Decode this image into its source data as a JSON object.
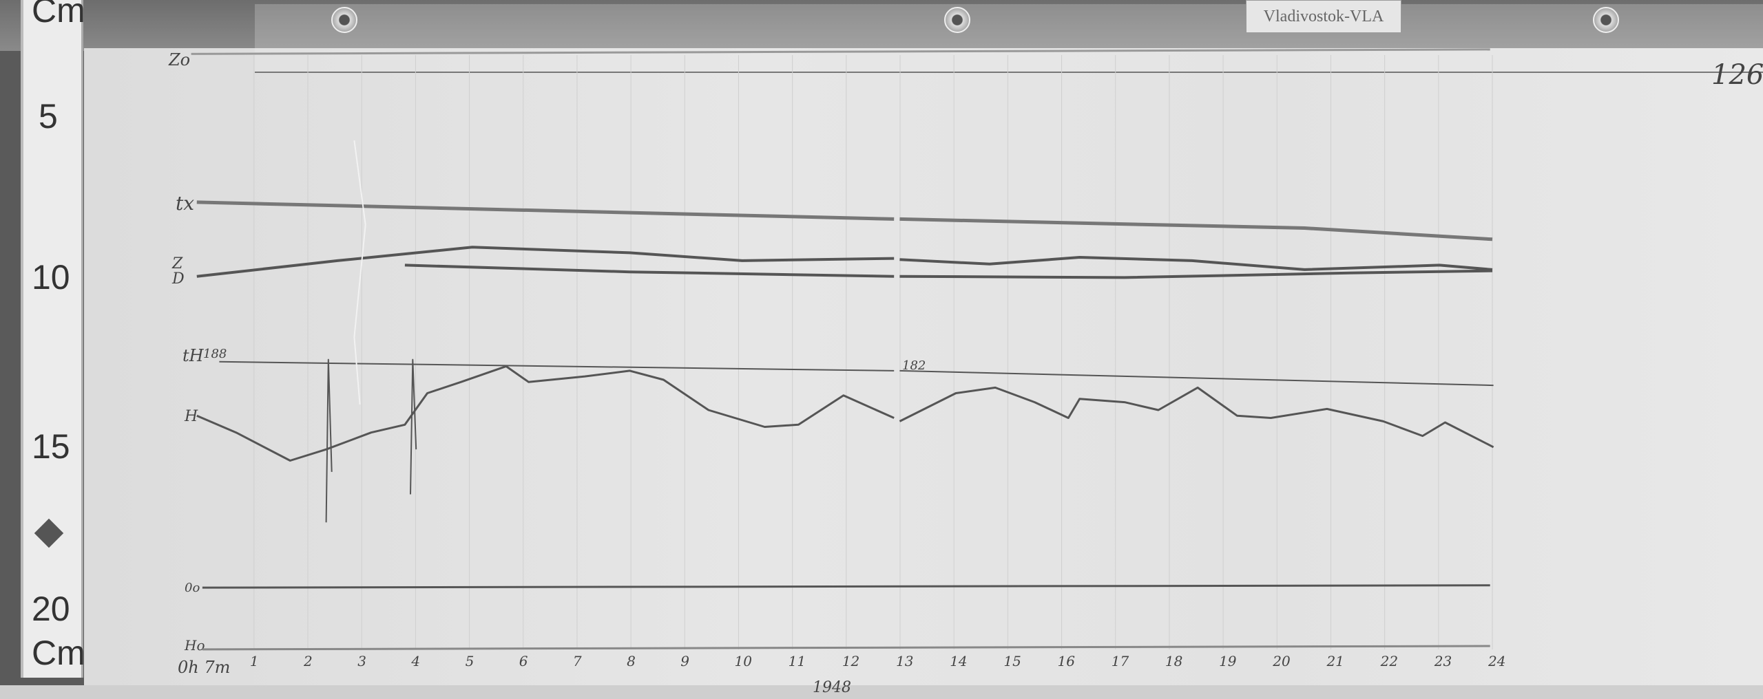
{
  "station_label": "Vladivostok-VLA",
  "sheet_number": "126",
  "ruler": {
    "unit_top": "Cm",
    "unit_bottom": "Cm",
    "marks": [
      "5",
      "10",
      "15",
      "20"
    ]
  },
  "trace_labels": {
    "z0": "Zo",
    "tx": "tx",
    "z": "Z",
    "d": "D",
    "th": "tH",
    "th_value": "188",
    "h": "H",
    "d0": "0o",
    "h0": "Ho",
    "mid_value": "182"
  },
  "time_axis": {
    "start": "0h 7m",
    "hours": [
      "1",
      "2",
      "3",
      "4",
      "5",
      "6",
      "7",
      "8",
      "9",
      "10",
      "11",
      "12",
      "13",
      "14",
      "15",
      "16",
      "17",
      "18",
      "19",
      "20",
      "21",
      "22",
      "23",
      "24"
    ]
  },
  "footer_note": "1948",
  "colors": {
    "paper": "#e2e2e2",
    "trace": "#555555",
    "background": "#6d6d6d"
  }
}
